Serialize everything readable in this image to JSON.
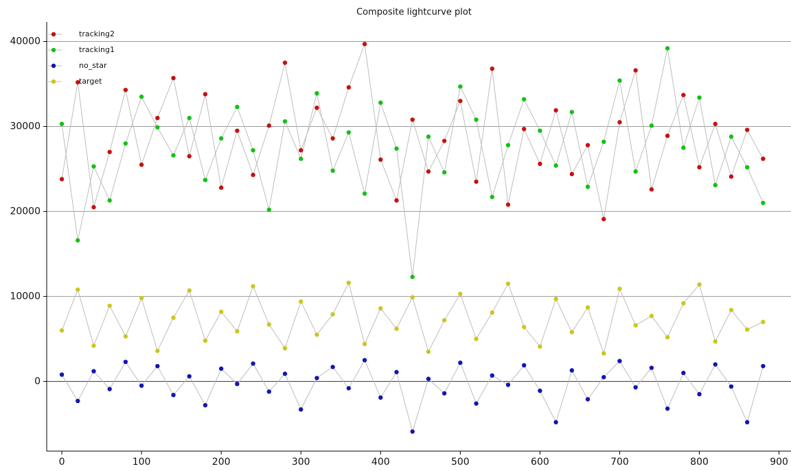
{
  "chart_data": {
    "type": "line",
    "title": "Composite lightcurve plot",
    "x": [
      0,
      20,
      40,
      60,
      80,
      100,
      120,
      140,
      160,
      180,
      200,
      220,
      240,
      260,
      280,
      300,
      320,
      340,
      360,
      380,
      400,
      420,
      440,
      460,
      480,
      500,
      520,
      540,
      560,
      580,
      600,
      620,
      640,
      660,
      680,
      700,
      720,
      740,
      760,
      780,
      800,
      820,
      840,
      860,
      880
    ],
    "series": [
      {
        "name": "tracking2",
        "color": "#c81010",
        "values": [
          23800,
          35200,
          20500,
          27000,
          34300,
          25500,
          31000,
          35700,
          26500,
          33800,
          22800,
          29500,
          24300,
          30100,
          37500,
          27200,
          32200,
          28600,
          34600,
          39700,
          26100,
          21300,
          30800,
          24700,
          28300,
          33000,
          23500,
          36800,
          20800,
          29700,
          25600,
          31900,
          24400,
          27800,
          19100,
          30500,
          36600,
          22600,
          28900,
          33700,
          25200,
          30300,
          24100,
          29600,
          26200
        ]
      },
      {
        "name": "tracking1",
        "color": "#16c016",
        "values": [
          30300,
          16600,
          25300,
          21300,
          28000,
          33500,
          29900,
          26600,
          31000,
          23700,
          28600,
          32300,
          27200,
          20200,
          30600,
          26200,
          33900,
          24800,
          29300,
          22100,
          32800,
          27400,
          12300,
          28800,
          24600,
          34700,
          30800,
          21700,
          27800,
          33200,
          29500,
          25400,
          31700,
          22900,
          28200,
          35400,
          24700,
          30100,
          39200,
          27500,
          33400,
          23100,
          28800,
          25200,
          21000
        ]
      },
      {
        "name": "no_star",
        "color": "#1414b4",
        "values": [
          800,
          -2300,
          1200,
          -900,
          2300,
          -500,
          1800,
          -1600,
          600,
          -2800,
          1500,
          -300,
          2100,
          -1200,
          900,
          -3300,
          400,
          1700,
          -800,
          2500,
          -1900,
          1100,
          -5900,
          300,
          -1400,
          2200,
          -2600,
          700,
          -400,
          1900,
          -1100,
          -4800,
          1300,
          -2100,
          500,
          2400,
          -700,
          1600,
          -3200,
          1000,
          -1500,
          2000,
          -600,
          -4800,
          1800
        ]
      },
      {
        "name": "target",
        "color": "#c8c81e",
        "values": [
          6000,
          10800,
          4200,
          8900,
          5300,
          9800,
          3600,
          7500,
          10700,
          4800,
          8200,
          5900,
          11200,
          6700,
          3900,
          9400,
          5500,
          7900,
          11600,
          4400,
          8600,
          6200,
          9900,
          3500,
          7200,
          10300,
          5000,
          8100,
          11500,
          6400,
          4100,
          9700,
          5800,
          8700,
          3300,
          10900,
          6600,
          7700,
          5200,
          9200,
          11400,
          4700,
          8400,
          6100,
          7000
        ]
      }
    ],
    "line_color": "#bdbdbd",
    "xlim": [
      -19,
      915
    ],
    "xticks": [
      0,
      100,
      200,
      300,
      400,
      500,
      600,
      700,
      800,
      900
    ],
    "ylim": [
      -8200,
      42300
    ],
    "yticks": [
      0,
      10000,
      20000,
      30000,
      40000
    ],
    "grid": true,
    "legend": "top-left"
  }
}
